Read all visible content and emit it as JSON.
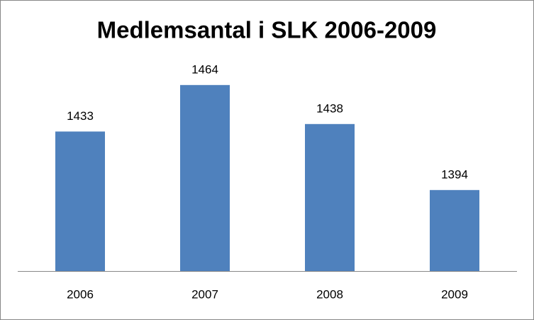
{
  "chart_data": {
    "type": "bar",
    "title": "Medlemsantal i SLK 2006-2009",
    "categories": [
      "2006",
      "2007",
      "2008",
      "2009"
    ],
    "values": [
      1433,
      1464,
      1438,
      1394
    ],
    "color": "#4f81bd",
    "ylim": [
      1340,
      1480
    ]
  }
}
